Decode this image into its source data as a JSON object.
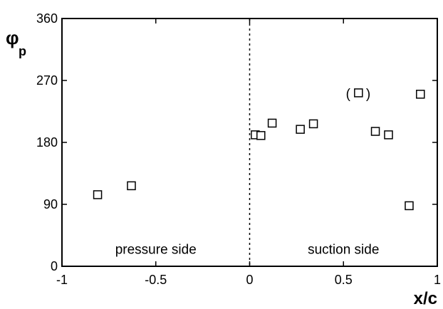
{
  "chart_data": {
    "type": "scatter",
    "xlabel": "x/c",
    "ylabel_main": "φ",
    "ylabel_sub": "p",
    "xlim": [
      -1,
      1
    ],
    "ylim": [
      0,
      360
    ],
    "xticks": [
      -1,
      -0.5,
      0,
      0.5,
      1
    ],
    "xtick_labels": [
      "-1",
      "-0.5",
      "0",
      "0.5",
      "1"
    ],
    "yticks": [
      0,
      90,
      180,
      270,
      360
    ],
    "ytick_labels": [
      "0",
      "90",
      "180",
      "270",
      "360"
    ],
    "grid": false,
    "marker": "open-square",
    "vertical_reference_line_x": 0,
    "points": [
      {
        "x": -0.81,
        "y": 104
      },
      {
        "x": -0.63,
        "y": 117
      },
      {
        "x": 0.03,
        "y": 191
      },
      {
        "x": 0.06,
        "y": 190
      },
      {
        "x": 0.12,
        "y": 208
      },
      {
        "x": 0.27,
        "y": 199
      },
      {
        "x": 0.34,
        "y": 207
      },
      {
        "x": 0.58,
        "y": 252
      },
      {
        "x": 0.67,
        "y": 196
      },
      {
        "x": 0.74,
        "y": 191
      },
      {
        "x": 0.85,
        "y": 88
      },
      {
        "x": 0.91,
        "y": 250
      }
    ],
    "annotations": [
      {
        "text": "pressure side",
        "x": -0.5,
        "y": 18
      },
      {
        "text": "suction side",
        "x": 0.5,
        "y": 18
      },
      {
        "text": "(",
        "x": 0.525,
        "y": 244
      },
      {
        "text": ")",
        "x": 0.632,
        "y": 244
      }
    ]
  }
}
